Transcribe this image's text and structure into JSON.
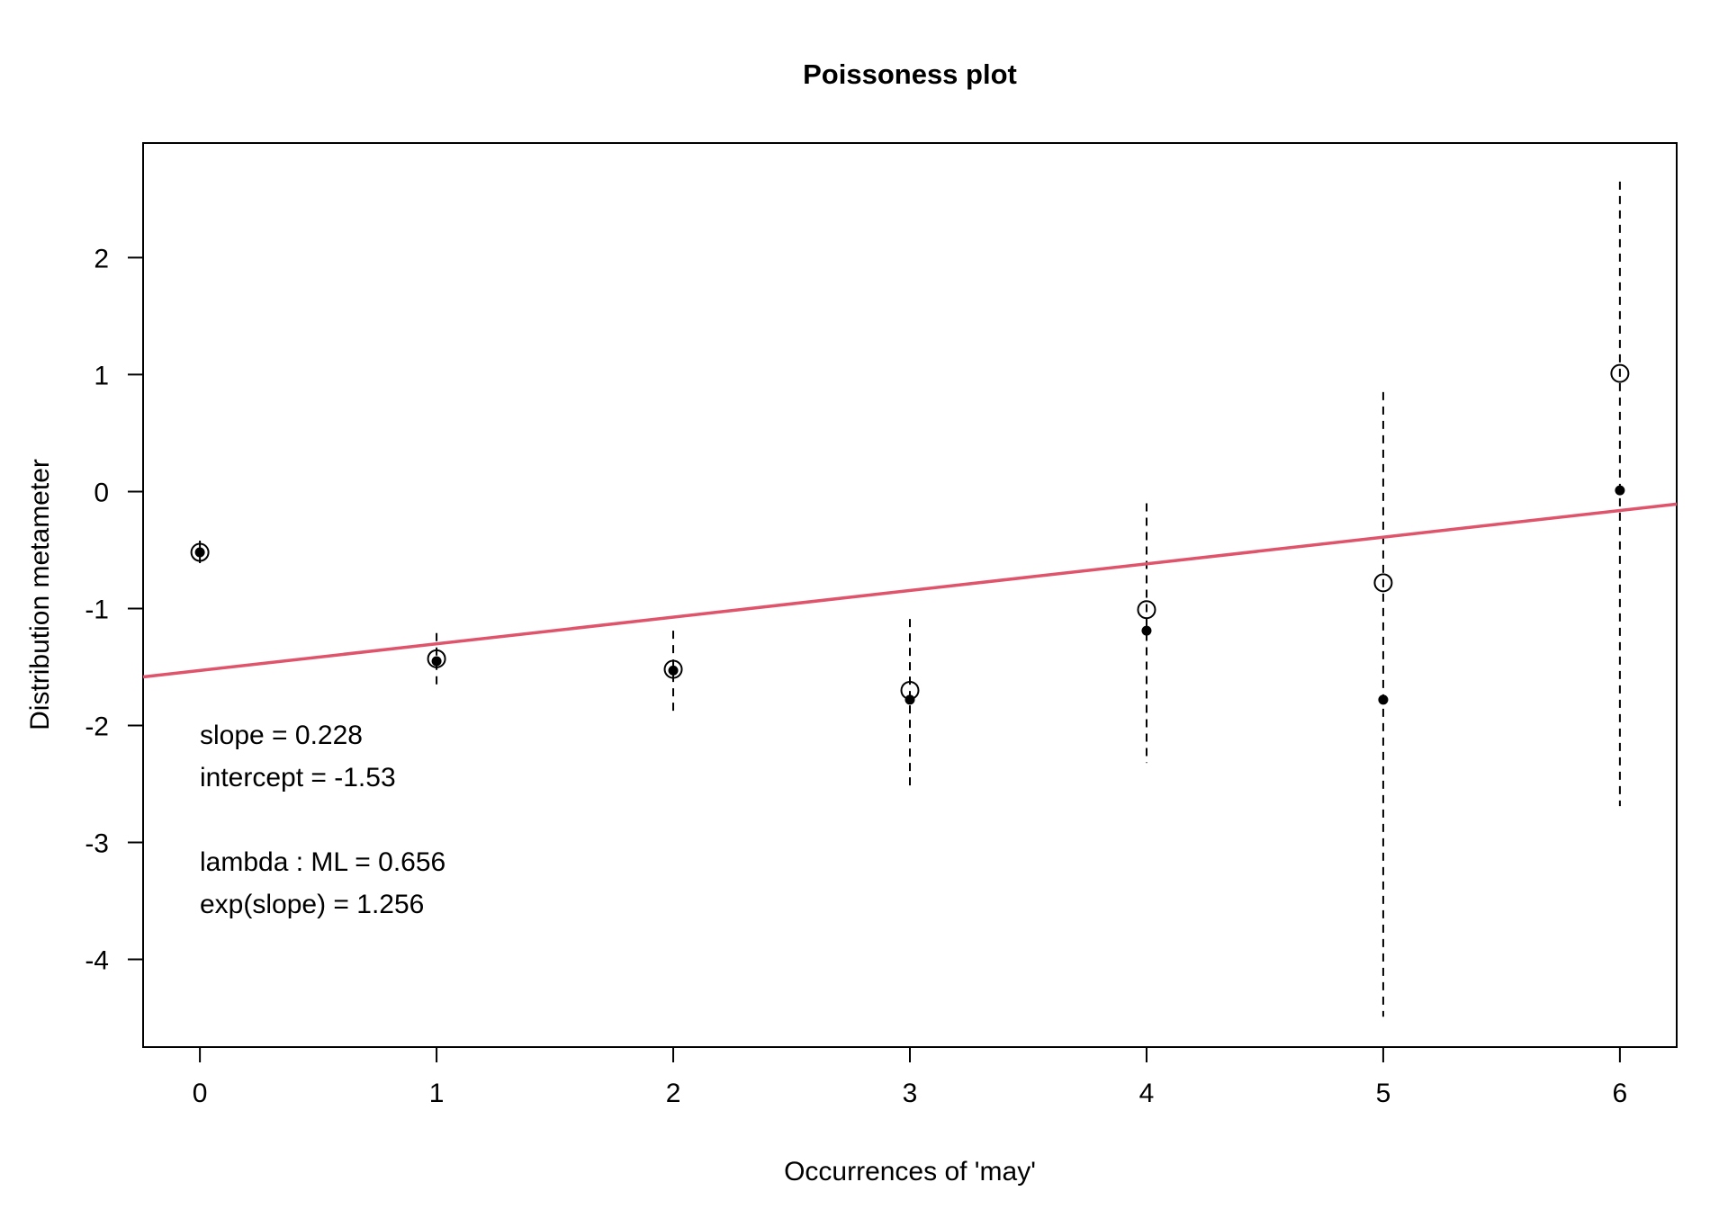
{
  "chart_data": {
    "type": "scatter",
    "title": "Poissoness plot",
    "xlabel": "Occurrences of 'may'",
    "ylabel": "Distribution metameter",
    "x": [
      0,
      1,
      2,
      3,
      4,
      5,
      6
    ],
    "xlim": [
      -0.24,
      6.24
    ],
    "ylim": [
      -4.75,
      2.98
    ],
    "xticks": [
      "0",
      "1",
      "2",
      "3",
      "4",
      "5",
      "6"
    ],
    "yticks": [
      "-4",
      "-3",
      "-2",
      "-1",
      "0",
      "1",
      "2"
    ],
    "series": [
      {
        "values": [
          -0.52,
          -1.43,
          -1.52,
          -1.7,
          -1.01,
          -0.78,
          1.01
        ],
        "marker": "open-circle"
      },
      {
        "values": [
          -0.52,
          -1.45,
          -1.53,
          -1.78,
          -1.19,
          -1.78,
          0.01
        ],
        "marker": "filled-circle"
      }
    ],
    "intervals": [
      {
        "x": 0,
        "low": -0.62,
        "high": -0.42
      },
      {
        "x": 1,
        "low": -1.67,
        "high": -1.21
      },
      {
        "x": 2,
        "low": -1.9,
        "high": -1.19
      },
      {
        "x": 3,
        "low": -2.55,
        "high": -1.09
      },
      {
        "x": 4,
        "low": -2.32,
        "high": -0.1
      },
      {
        "x": 5,
        "low": -4.49,
        "high": 0.85
      },
      {
        "x": 6,
        "low": -2.69,
        "high": 2.65
      }
    ],
    "fit_line": {
      "slope": 0.228,
      "intercept": -1.53,
      "color": "#DF536B"
    },
    "annotations": [
      "slope = 0.228",
      "intercept = -1.53",
      "lambda : ML = 0.656",
      "exp(slope) = 1.256"
    ],
    "grid": false
  }
}
